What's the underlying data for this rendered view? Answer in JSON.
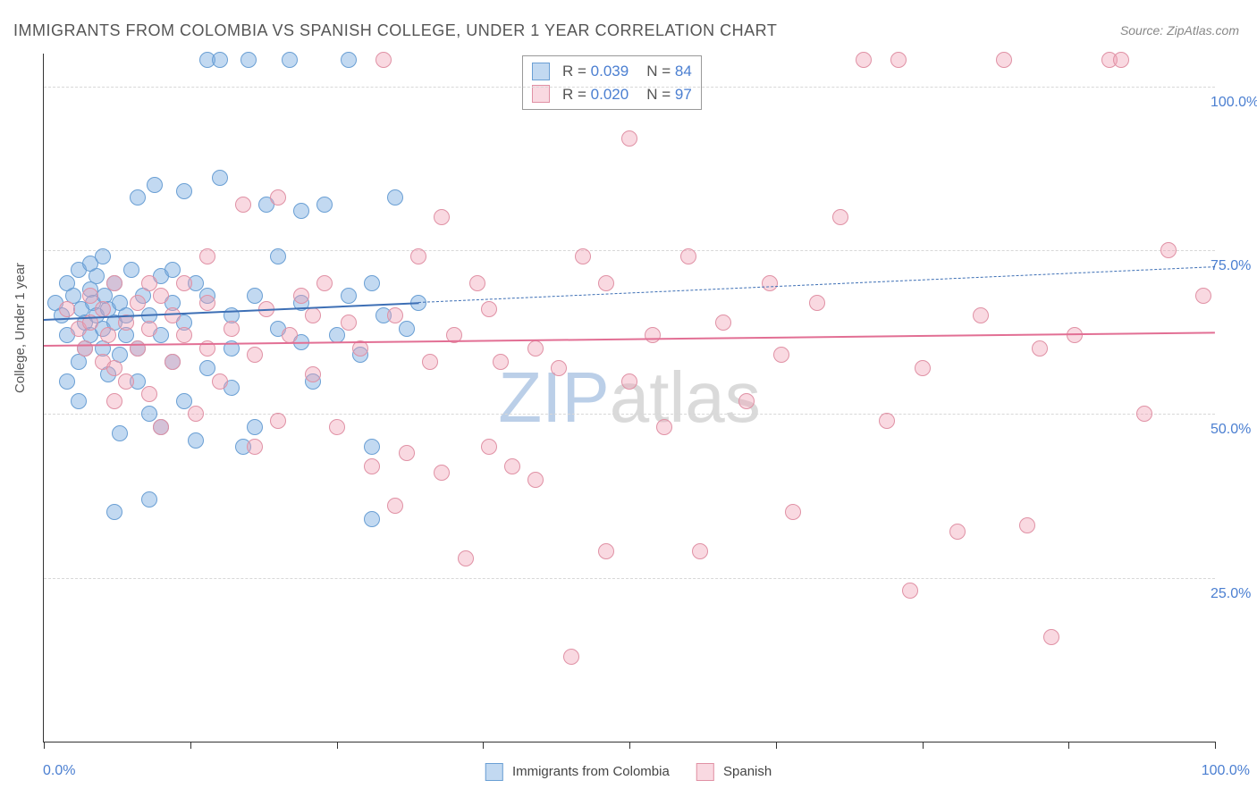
{
  "title": "IMMIGRANTS FROM COLOMBIA VS SPANISH COLLEGE, UNDER 1 YEAR CORRELATION CHART",
  "source": "Source: ZipAtlas.com",
  "ylabel": "College, Under 1 year",
  "watermark": {
    "z": "ZIP",
    "rest": "atlas"
  },
  "chart": {
    "type": "scatter",
    "xlim": [
      0,
      100
    ],
    "ylim": [
      0,
      105
    ],
    "yticks": [
      25,
      50,
      75,
      100
    ],
    "ytick_labels": [
      "25.0%",
      "50.0%",
      "75.0%",
      "100.0%"
    ],
    "xticks": [
      0,
      12.5,
      25,
      37.5,
      50,
      62.5,
      75,
      87.5,
      100
    ],
    "x_axis_min_label": "0.0%",
    "x_axis_max_label": "100.0%",
    "grid_color": "#d8d8d8",
    "background_color": "#ffffff",
    "marker_radius": 8,
    "series": [
      {
        "name": "Immigrants from Colombia",
        "color_fill": "rgba(120,170,225,0.45)",
        "color_stroke": "#6a9fd4",
        "R": "0.039",
        "N": "84",
        "trend": {
          "y_at_x0": 64.5,
          "y_at_x100": 72.5,
          "solid_until_x": 32,
          "color": "#3d6fb5",
          "width": 2.5
        },
        "points": [
          [
            1,
            67
          ],
          [
            1.5,
            65
          ],
          [
            2,
            70
          ],
          [
            2,
            62
          ],
          [
            2.5,
            68
          ],
          [
            3,
            72
          ],
          [
            3,
            58
          ],
          [
            3.2,
            66
          ],
          [
            3.5,
            64
          ],
          [
            3.5,
            60
          ],
          [
            4,
            69
          ],
          [
            4,
            62
          ],
          [
            4.2,
            67
          ],
          [
            4.5,
            65
          ],
          [
            4.5,
            71
          ],
          [
            5,
            63
          ],
          [
            5,
            60
          ],
          [
            5.2,
            68
          ],
          [
            5.5,
            56
          ],
          [
            5.5,
            66
          ],
          [
            6,
            70
          ],
          [
            6,
            64
          ],
          [
            6.5,
            59
          ],
          [
            6.5,
            67
          ],
          [
            7,
            62
          ],
          [
            7,
            65
          ],
          [
            7.5,
            72
          ],
          [
            8,
            60
          ],
          [
            8,
            55
          ],
          [
            8.5,
            68
          ],
          [
            9,
            65
          ],
          [
            9,
            50
          ],
          [
            9.5,
            85
          ],
          [
            10,
            71
          ],
          [
            10,
            62
          ],
          [
            10,
            48
          ],
          [
            11,
            67
          ],
          [
            11,
            58
          ],
          [
            12,
            84
          ],
          [
            12,
            64
          ],
          [
            9,
            37
          ],
          [
            13,
            70
          ],
          [
            13,
            46
          ],
          [
            14,
            68
          ],
          [
            14,
            104
          ],
          [
            15,
            104
          ],
          [
            15,
            86
          ],
          [
            16,
            65
          ],
          [
            16,
            60
          ],
          [
            17,
            45
          ],
          [
            17.5,
            104
          ],
          [
            18,
            68
          ],
          [
            6,
            35
          ],
          [
            19,
            82
          ],
          [
            20,
            63
          ],
          [
            20,
            74
          ],
          [
            21,
            104
          ],
          [
            22,
            67
          ],
          [
            22,
            81
          ],
          [
            23,
            55
          ],
          [
            24,
            82
          ],
          [
            25,
            62
          ],
          [
            26,
            104
          ],
          [
            26,
            68
          ],
          [
            27,
            59
          ],
          [
            28,
            70
          ],
          [
            28,
            45
          ],
          [
            29,
            65
          ],
          [
            30,
            83
          ],
          [
            31,
            63
          ],
          [
            32,
            67
          ],
          [
            2,
            55
          ],
          [
            3,
            52
          ],
          [
            6.5,
            47
          ],
          [
            4,
            73
          ],
          [
            12,
            52
          ],
          [
            14,
            57
          ],
          [
            18,
            48
          ],
          [
            22,
            61
          ],
          [
            8,
            83
          ],
          [
            5,
            74
          ],
          [
            28,
            34
          ],
          [
            11,
            72
          ],
          [
            16,
            54
          ]
        ]
      },
      {
        "name": "Spanish",
        "color_fill": "rgba(240,160,180,0.40)",
        "color_stroke": "#e091a5",
        "R": "0.020",
        "N": "97",
        "trend": {
          "y_at_x0": 60.5,
          "y_at_x100": 62.5,
          "solid_until_x": 100,
          "color": "#e26f94",
          "width": 2.5
        },
        "points": [
          [
            2,
            66
          ],
          [
            3,
            63
          ],
          [
            3.5,
            60
          ],
          [
            4,
            68
          ],
          [
            4,
            64
          ],
          [
            5,
            58
          ],
          [
            5,
            66
          ],
          [
            5.5,
            62
          ],
          [
            6,
            70
          ],
          [
            6,
            57
          ],
          [
            7,
            64
          ],
          [
            7,
            55
          ],
          [
            8,
            67
          ],
          [
            8,
            60
          ],
          [
            9,
            63
          ],
          [
            9,
            53
          ],
          [
            10,
            68
          ],
          [
            10,
            48
          ],
          [
            11,
            65
          ],
          [
            11,
            58
          ],
          [
            12,
            62
          ],
          [
            12,
            70
          ],
          [
            13,
            50
          ],
          [
            14,
            67
          ],
          [
            14,
            60
          ],
          [
            15,
            55
          ],
          [
            16,
            63
          ],
          [
            17,
            82
          ],
          [
            18,
            59
          ],
          [
            18,
            45
          ],
          [
            19,
            66
          ],
          [
            20,
            49
          ],
          [
            20,
            83
          ],
          [
            21,
            62
          ],
          [
            22,
            68
          ],
          [
            23,
            56
          ],
          [
            24,
            70
          ],
          [
            25,
            48
          ],
          [
            26,
            64
          ],
          [
            27,
            60
          ],
          [
            28,
            42
          ],
          [
            29,
            104
          ],
          [
            30,
            65
          ],
          [
            30,
            36
          ],
          [
            31,
            44
          ],
          [
            32,
            74
          ],
          [
            33,
            58
          ],
          [
            34,
            41
          ],
          [
            34,
            80
          ],
          [
            35,
            62
          ],
          [
            36,
            28
          ],
          [
            37,
            70
          ],
          [
            38,
            45
          ],
          [
            38,
            66
          ],
          [
            39,
            58
          ],
          [
            40,
            42
          ],
          [
            42,
            60
          ],
          [
            42,
            40
          ],
          [
            44,
            57
          ],
          [
            45,
            13
          ],
          [
            46,
            74
          ],
          [
            48,
            29
          ],
          [
            48,
            70
          ],
          [
            50,
            92
          ],
          [
            50,
            55
          ],
          [
            52,
            62
          ],
          [
            53,
            48
          ],
          [
            55,
            74
          ],
          [
            56,
            29
          ],
          [
            58,
            64
          ],
          [
            60,
            52
          ],
          [
            62,
            70
          ],
          [
            63,
            59
          ],
          [
            64,
            35
          ],
          [
            66,
            67
          ],
          [
            68,
            80
          ],
          [
            70,
            104
          ],
          [
            72,
            49
          ],
          [
            73,
            104
          ],
          [
            74,
            23
          ],
          [
            75,
            57
          ],
          [
            78,
            32
          ],
          [
            80,
            65
          ],
          [
            82,
            104
          ],
          [
            84,
            33
          ],
          [
            85,
            60
          ],
          [
            86,
            16
          ],
          [
            88,
            62
          ],
          [
            91,
            104
          ],
          [
            92,
            104
          ],
          [
            94,
            50
          ],
          [
            96,
            75
          ],
          [
            99,
            68
          ],
          [
            14,
            74
          ],
          [
            23,
            65
          ],
          [
            6,
            52
          ],
          [
            9,
            70
          ]
        ]
      }
    ]
  },
  "bottom_legend": {
    "series1_label": "Immigrants from Colombia",
    "series2_label": "Spanish"
  }
}
